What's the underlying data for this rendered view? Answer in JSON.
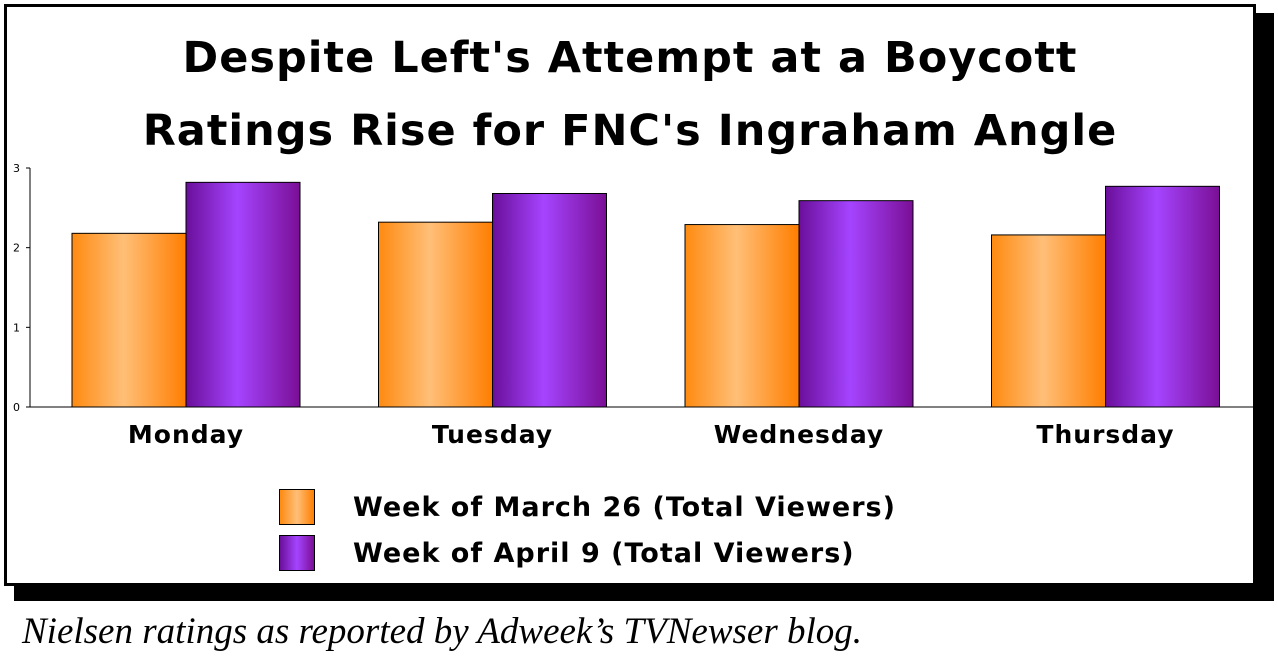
{
  "chart_data": {
    "type": "bar",
    "title_lines": [
      "Despite Left's Attempt at a Boycott",
      "Ratings Rise for FNC's Ingraham Angle"
    ],
    "categories": [
      "Monday",
      "Tuesday",
      "Wednesday",
      "Thursday"
    ],
    "series": [
      {
        "name": "Week of March 26 (Total Viewers)",
        "values": [
          2.18,
          2.32,
          2.29,
          2.16
        ],
        "color": "#ff8c1a"
      },
      {
        "name": "Week of April 9 (Total Viewers)",
        "values": [
          2.82,
          2.68,
          2.59,
          2.77
        ],
        "color": "#9933ff"
      }
    ],
    "ylim": [
      0,
      3
    ],
    "yticks": [
      "0",
      "1",
      "2",
      "3"
    ],
    "grid": false,
    "legend_position": "bottom"
  },
  "caption": "Nielsen ratings as reported by Adweek’s TVNewser blog."
}
